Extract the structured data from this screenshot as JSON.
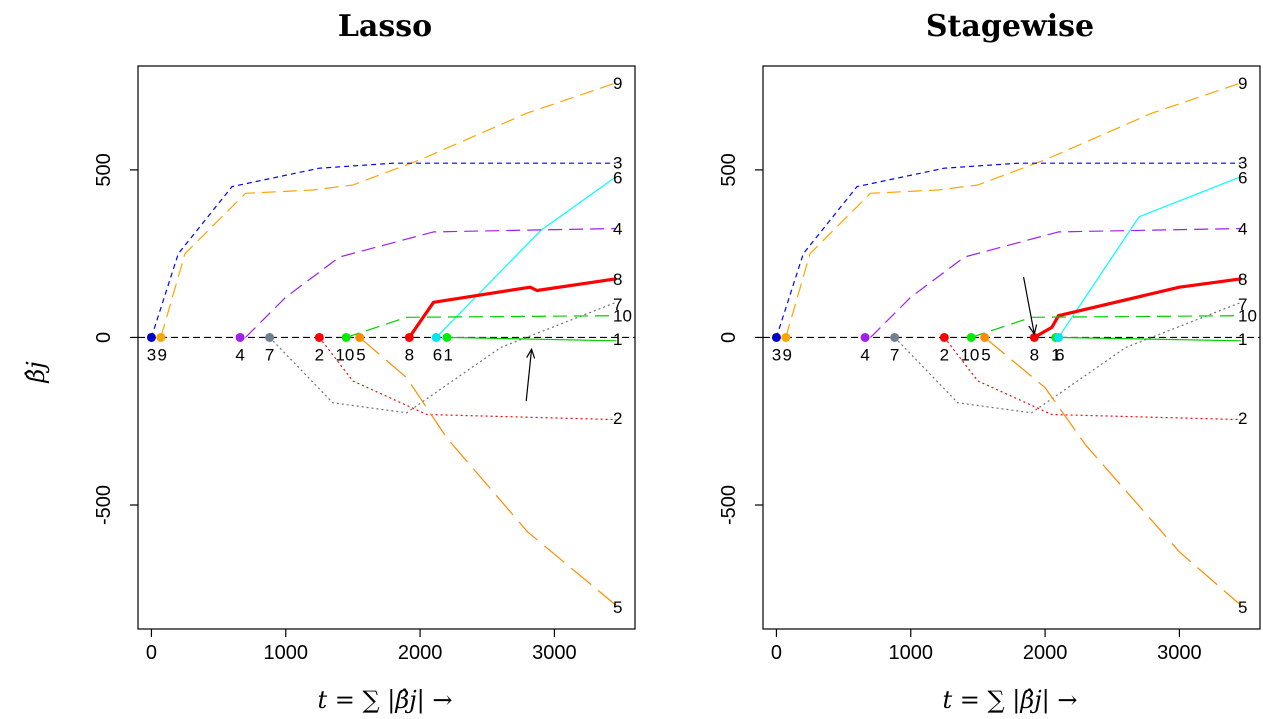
{
  "chart_data": [
    {
      "type": "line",
      "title": "Lasso",
      "xlabel": "t = ∑ |β̂j| →",
      "ylabel": "β̂j",
      "xlim": [
        -100,
        3600
      ],
      "ylim": [
        -870,
        810
      ],
      "xticks": [
        "0",
        "1000",
        "2000",
        "3000"
      ],
      "yticks": [
        "-500",
        "0",
        "500"
      ],
      "grid": false,
      "baseline_y": 0,
      "entry_labels": [
        "3",
        "9",
        "4",
        "7",
        "2",
        "10",
        "5",
        "8",
        "6",
        "1"
      ],
      "series": [
        {
          "name": "9",
          "color": "#ffa500",
          "dash": "14,7",
          "width": 1.2,
          "points": [
            [
              70,
              0
            ],
            [
              250,
              250
            ],
            [
              700,
              430
            ],
            [
              1200,
              440
            ],
            [
              1500,
              455
            ],
            [
              2000,
              530
            ],
            [
              2800,
              670
            ],
            [
              3460,
              760
            ]
          ]
        },
        {
          "name": "3",
          "color": "#0000ff",
          "dash": "5,4",
          "width": 1.2,
          "points": [
            [
              0,
              0
            ],
            [
              200,
              250
            ],
            [
              600,
              450
            ],
            [
              1250,
              505
            ],
            [
              1800,
              520
            ],
            [
              3460,
              520
            ]
          ]
        },
        {
          "name": "6",
          "color": "#00ffff",
          "dash": "",
          "width": 1.2,
          "points": [
            [
              2120,
              0
            ],
            [
              2900,
              320
            ],
            [
              3460,
              480
            ]
          ]
        },
        {
          "name": "4",
          "color": "#a020f0",
          "dash": "14,7",
          "width": 1.2,
          "points": [
            [
              700,
              0
            ],
            [
              1000,
              120
            ],
            [
              1400,
              240
            ],
            [
              2100,
              315
            ],
            [
              3460,
              325
            ]
          ]
        },
        {
          "name": "8",
          "color": "#ff0000",
          "dash": "",
          "width": 3.2,
          "points": [
            [
              1920,
              0
            ],
            [
              2100,
              105
            ],
            [
              2820,
              150
            ],
            [
              2870,
              140
            ],
            [
              3460,
              175
            ]
          ]
        },
        {
          "name": "7",
          "color": "#707070",
          "dash": "2,3",
          "width": 1.2,
          "points": [
            [
              880,
              0
            ],
            [
              1350,
              -195
            ],
            [
              1900,
              -225
            ],
            [
              2600,
              -30
            ],
            [
              3460,
              105
            ]
          ]
        },
        {
          "name": "10",
          "color": "#00cd00",
          "dash": "14,7",
          "width": 1.2,
          "points": [
            [
              1450,
              0
            ],
            [
              1900,
              60
            ],
            [
              3460,
              65
            ]
          ]
        },
        {
          "name": "1",
          "color": "#00cd00",
          "dash": "",
          "width": 1.2,
          "points": [
            [
              2200,
              0
            ],
            [
              3460,
              -10
            ]
          ]
        },
        {
          "name": "2",
          "color": "#ff0000",
          "dash": "2,3",
          "width": 1.2,
          "points": [
            [
              1250,
              0
            ],
            [
              1500,
              -130
            ],
            [
              2050,
              -230
            ],
            [
              3460,
              -245
            ]
          ]
        },
        {
          "name": "5",
          "color": "#ff8c00",
          "dash": "26,9",
          "width": 1.2,
          "points": [
            [
              1550,
              0
            ],
            [
              1900,
              -120
            ],
            [
              2200,
              -300
            ],
            [
              2800,
              -580
            ],
            [
              3460,
              -800
            ]
          ]
        }
      ],
      "entry_points": [
        {
          "x": 0,
          "color": "#0000cd"
        },
        {
          "x": 70,
          "color": "#ffa500"
        },
        {
          "x": 660,
          "color": "#a020f0"
        },
        {
          "x": 880,
          "color": "#708090"
        },
        {
          "x": 1250,
          "color": "#ff0000"
        },
        {
          "x": 1450,
          "color": "#00ee00"
        },
        {
          "x": 1550,
          "color": "#ff8c00"
        },
        {
          "x": 1920,
          "color": "#ff0000"
        },
        {
          "x": 2120,
          "color": "#00e5ee"
        },
        {
          "x": 2200,
          "color": "#00ee00"
        }
      ],
      "entry_label_positions": [
        {
          "x": 0,
          "text": "3"
        },
        {
          "x": 80,
          "text": "9"
        },
        {
          "x": 660,
          "text": "4"
        },
        {
          "x": 880,
          "text": "7"
        },
        {
          "x": 1250,
          "text": "2"
        },
        {
          "x": 1440,
          "text": "10"
        },
        {
          "x": 1560,
          "text": "5"
        },
        {
          "x": 1920,
          "text": "8"
        },
        {
          "x": 2130,
          "text": "6"
        },
        {
          "x": 2210,
          "text": "1"
        }
      ],
      "end_labels": [
        {
          "y": 760,
          "text": "9"
        },
        {
          "y": 522,
          "text": "3"
        },
        {
          "y": 478,
          "text": "6"
        },
        {
          "y": 325,
          "text": "4"
        },
        {
          "y": 175,
          "text": "8"
        },
        {
          "y": 100,
          "text": "7"
        },
        {
          "y": 65,
          "text": "10"
        },
        {
          "y": -5,
          "text": "1"
        },
        {
          "y": -240,
          "text": "2"
        },
        {
          "y": -805,
          "text": "5"
        }
      ],
      "arrow": {
        "from": [
          2790,
          -190
        ],
        "to": [
          2830,
          -35
        ]
      }
    },
    {
      "type": "line",
      "title": "Stagewise",
      "xlabel": "t = ∑ |β̂j| →",
      "ylabel": "",
      "xlim": [
        -100,
        3600
      ],
      "ylim": [
        -870,
        810
      ],
      "xticks": [
        "0",
        "1000",
        "2000",
        "3000"
      ],
      "yticks": [
        "-500",
        "0",
        "500"
      ],
      "grid": false,
      "baseline_y": 0,
      "entry_labels": [
        "3",
        "9",
        "4",
        "7",
        "2",
        "10",
        "5",
        "8",
        "1",
        "6"
      ],
      "series": [
        {
          "name": "9",
          "color": "#ffa500",
          "dash": "14,7",
          "width": 1.2,
          "points": [
            [
              70,
              0
            ],
            [
              250,
              250
            ],
            [
              700,
              430
            ],
            [
              1200,
              440
            ],
            [
              1500,
              455
            ],
            [
              2000,
              530
            ],
            [
              2800,
              670
            ],
            [
              3460,
              760
            ]
          ]
        },
        {
          "name": "3",
          "color": "#0000ff",
          "dash": "5,4",
          "width": 1.2,
          "points": [
            [
              0,
              0
            ],
            [
              200,
              250
            ],
            [
              600,
              450
            ],
            [
              1250,
              505
            ],
            [
              1800,
              520
            ],
            [
              3460,
              520
            ]
          ]
        },
        {
          "name": "6",
          "color": "#00ffff",
          "dash": "",
          "width": 1.2,
          "points": [
            [
              2100,
              0
            ],
            [
              2700,
              360
            ],
            [
              3460,
              480
            ]
          ]
        },
        {
          "name": "4",
          "color": "#a020f0",
          "dash": "14,7",
          "width": 1.2,
          "points": [
            [
              700,
              0
            ],
            [
              1000,
              120
            ],
            [
              1400,
              240
            ],
            [
              2100,
              315
            ],
            [
              3460,
              325
            ]
          ]
        },
        {
          "name": "8",
          "color": "#ff0000",
          "dash": "",
          "width": 3.2,
          "points": [
            [
              1920,
              0
            ],
            [
              2050,
              30
            ],
            [
              2100,
              65
            ],
            [
              3000,
              150
            ],
            [
              3460,
              175
            ]
          ]
        },
        {
          "name": "7",
          "color": "#707070",
          "dash": "2,3",
          "width": 1.2,
          "points": [
            [
              880,
              0
            ],
            [
              1350,
              -195
            ],
            [
              1900,
              -225
            ],
            [
              2600,
              -30
            ],
            [
              3460,
              105
            ]
          ]
        },
        {
          "name": "10",
          "color": "#00cd00",
          "dash": "14,7",
          "width": 1.2,
          "points": [
            [
              1450,
              0
            ],
            [
              1900,
              60
            ],
            [
              3460,
              65
            ]
          ]
        },
        {
          "name": "1",
          "color": "#00cd00",
          "dash": "",
          "width": 1.2,
          "points": [
            [
              2080,
              0
            ],
            [
              3460,
              -10
            ]
          ]
        },
        {
          "name": "2",
          "color": "#ff0000",
          "dash": "2,3",
          "width": 1.2,
          "points": [
            [
              1250,
              0
            ],
            [
              1500,
              -130
            ],
            [
              2050,
              -230
            ],
            [
              3460,
              -245
            ]
          ]
        },
        {
          "name": "5",
          "color": "#ff8c00",
          "dash": "26,9",
          "width": 1.2,
          "points": [
            [
              1550,
              0
            ],
            [
              2000,
              -150
            ],
            [
              2300,
              -320
            ],
            [
              3000,
              -640
            ],
            [
              3460,
              -800
            ]
          ]
        }
      ],
      "entry_points": [
        {
          "x": 0,
          "color": "#0000cd"
        },
        {
          "x": 70,
          "color": "#ffa500"
        },
        {
          "x": 660,
          "color": "#a020f0"
        },
        {
          "x": 880,
          "color": "#708090"
        },
        {
          "x": 1250,
          "color": "#ff0000"
        },
        {
          "x": 1450,
          "color": "#00ee00"
        },
        {
          "x": 1550,
          "color": "#ff8c00"
        },
        {
          "x": 1920,
          "color": "#ff0000"
        },
        {
          "x": 2080,
          "color": "#00ee00"
        },
        {
          "x": 2100,
          "color": "#00e5ee"
        }
      ],
      "entry_label_positions": [
        {
          "x": 0,
          "text": "3"
        },
        {
          "x": 80,
          "text": "9"
        },
        {
          "x": 660,
          "text": "4"
        },
        {
          "x": 880,
          "text": "7"
        },
        {
          "x": 1250,
          "text": "2"
        },
        {
          "x": 1440,
          "text": "10"
        },
        {
          "x": 1560,
          "text": "5"
        },
        {
          "x": 1920,
          "text": "8"
        },
        {
          "x": 2080,
          "text": "1"
        },
        {
          "x": 2110,
          "text": "6"
        }
      ],
      "end_labels": [
        {
          "y": 760,
          "text": "9"
        },
        {
          "y": 522,
          "text": "3"
        },
        {
          "y": 478,
          "text": "6"
        },
        {
          "y": 325,
          "text": "4"
        },
        {
          "y": 175,
          "text": "8"
        },
        {
          "y": 100,
          "text": "7"
        },
        {
          "y": 65,
          "text": "10"
        },
        {
          "y": -5,
          "text": "1"
        },
        {
          "y": -240,
          "text": "2"
        },
        {
          "y": -805,
          "text": "5"
        }
      ],
      "arrow": {
        "from": [
          1840,
          180
        ],
        "to": [
          1920,
          10
        ]
      }
    }
  ]
}
